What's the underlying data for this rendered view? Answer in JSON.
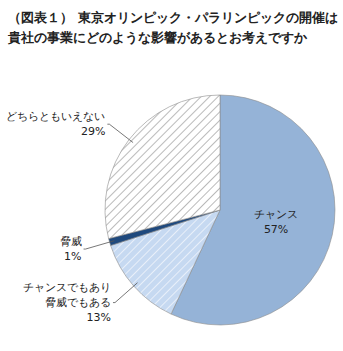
{
  "chart_data": {
    "type": "pie",
    "title": "（図表１） 東京オリンピック・パラリンピックの開催は\n貴社の事業にどのような影響があるとお考えですか",
    "categories": [
      "チャンス",
      "チャンスでもあり\n脅威でもある",
      "脅威",
      "どちらともいえない"
    ],
    "values": [
      57,
      13,
      1,
      29
    ],
    "value_labels": [
      "57%",
      "13%",
      "1%",
      "29%"
    ],
    "colors": [
      "#95b3d7",
      "#c6d9f1",
      "#1f497d",
      "#ffffff"
    ],
    "data_labels": true
  }
}
